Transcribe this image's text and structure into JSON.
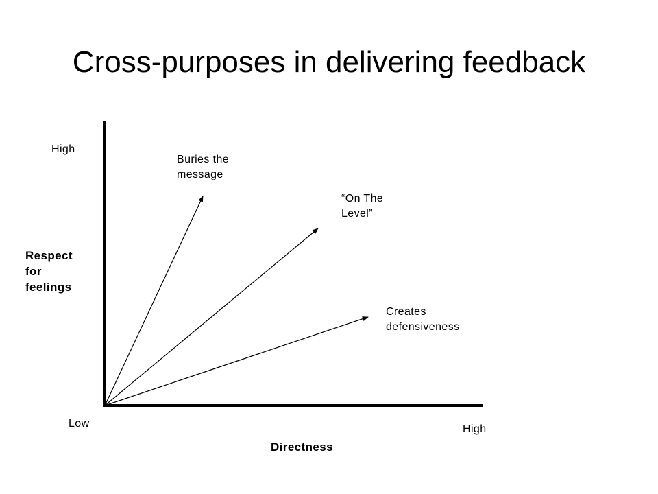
{
  "title": "Cross-purposes in delivering feedback",
  "y_axis": {
    "high": "High",
    "label": "Respect\nfor\nfeelings"
  },
  "x_axis": {
    "low": "Low",
    "high": "High",
    "label": "Directness"
  },
  "arrows": [
    {
      "label": "Buries the\nmessage"
    },
    {
      "label": "“On The\nLevel”"
    },
    {
      "label": "Creates\ndefensiveness"
    }
  ],
  "colors": {
    "ink": "#000000",
    "background": "#ffffff"
  }
}
